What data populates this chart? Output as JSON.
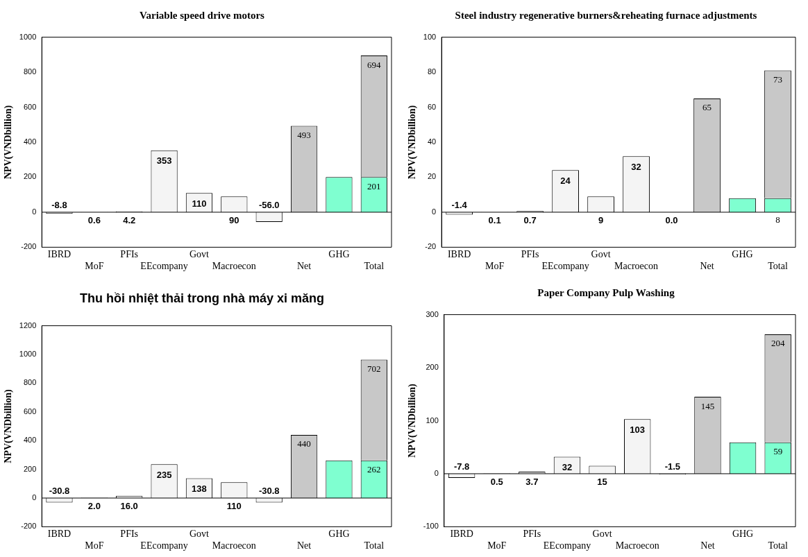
{
  "chart_data": [
    {
      "type": "bar",
      "title": "Variable speed drive motors",
      "ylabel": "NPV(VNDbillion)",
      "categories": [
        "IBRD",
        "MoF",
        "PFIs",
        "EEcompany",
        "Govt",
        "Macroecon",
        null,
        "Net",
        "GHG",
        "Total"
      ],
      "stacked": true,
      "ylim": [
        -200,
        1000
      ],
      "yticks": [
        -200,
        0,
        200,
        400,
        600,
        800,
        1000
      ],
      "grid": false,
      "ref_lines": [
        {
          "axis": "y",
          "value": 0,
          "color": "#000000"
        }
      ],
      "legend": false,
      "series": [
        {
          "color": "#f4f4f4",
          "values": [
            -8.8,
            0.6,
            4.2,
            353,
            110,
            90,
            -56.0,
            null,
            null,
            null
          ],
          "value_labels": [
            "-8.8",
            "0.6",
            "4.2",
            "353",
            "110",
            "90",
            "-56.0",
            null,
            null,
            null
          ]
        },
        {
          "color": "#7fffd0",
          "values": [
            null,
            null,
            null,
            null,
            null,
            null,
            null,
            null,
            201,
            201
          ],
          "value_labels": [
            null,
            null,
            null,
            null,
            null,
            null,
            null,
            null,
            null,
            "201"
          ]
        },
        {
          "color": "#c8c8c8",
          "values": [
            null,
            null,
            null,
            null,
            null,
            null,
            null,
            493,
            null,
            694
          ],
          "value_labels": [
            null,
            null,
            null,
            null,
            null,
            null,
            null,
            "493",
            null,
            "694"
          ]
        }
      ]
    },
    {
      "type": "bar",
      "title": "Steel industry regenerative burners&reheating furnace adjustments",
      "ylabel": "NPV(VNDbillion)",
      "categories": [
        "IBRD",
        "MoF",
        "PFIs",
        "EEcompany",
        "Govt",
        "Macroecon",
        null,
        "Net",
        "GHG",
        "Total"
      ],
      "stacked": true,
      "ylim": [
        -20,
        100
      ],
      "yticks": [
        -20,
        0,
        20,
        40,
        60,
        80,
        100
      ],
      "grid": false,
      "ref_lines": [
        {
          "axis": "y",
          "value": 0,
          "color": "#000000"
        }
      ],
      "legend": false,
      "series": [
        {
          "color": "#f4f4f4",
          "values": [
            -1.4,
            0.1,
            0.7,
            24,
            9,
            32,
            0.0,
            null,
            null,
            null
          ],
          "value_labels": [
            "-1.4",
            "0.1",
            "0.7",
            "24",
            "9",
            "32",
            "0.0",
            null,
            null,
            null
          ]
        },
        {
          "color": "#7fffd0",
          "values": [
            null,
            null,
            null,
            null,
            null,
            null,
            null,
            null,
            8,
            8
          ],
          "value_labels": [
            null,
            null,
            null,
            null,
            null,
            null,
            null,
            null,
            null,
            "8"
          ]
        },
        {
          "color": "#c8c8c8",
          "values": [
            null,
            null,
            null,
            null,
            null,
            null,
            null,
            65,
            null,
            73
          ],
          "value_labels": [
            null,
            null,
            null,
            null,
            null,
            null,
            null,
            "65",
            null,
            "73"
          ]
        }
      ]
    },
    {
      "type": "bar",
      "title": "Thu hồi nhiệt thải trong nhà máy xi măng",
      "ylabel": "NPV(VNDbillion)",
      "categories": [
        "IBRD",
        "MoF",
        "PFIs",
        "EEcompany",
        "Govt",
        "Macroecon",
        null,
        "Net",
        "GHG",
        "Total"
      ],
      "stacked": true,
      "ylim": [
        -200,
        1200
      ],
      "yticks": [
        -200,
        0,
        200,
        400,
        600,
        800,
        1000,
        1200
      ],
      "grid": false,
      "ref_lines": [
        {
          "axis": "y",
          "value": 0,
          "color": "#000000"
        }
      ],
      "legend": false,
      "series": [
        {
          "color": "#f4f4f4",
          "values": [
            -30.8,
            2.0,
            16.0,
            235,
            138,
            110,
            -30.8,
            null,
            null,
            null
          ],
          "value_labels": [
            "-30.8",
            "2.0",
            "16.0",
            "235",
            "138",
            "110",
            "-30.8",
            null,
            null,
            null
          ]
        },
        {
          "color": "#7fffd0",
          "values": [
            null,
            null,
            null,
            null,
            null,
            null,
            null,
            null,
            262,
            262
          ],
          "value_labels": [
            null,
            null,
            null,
            null,
            null,
            null,
            null,
            null,
            null,
            "262"
          ]
        },
        {
          "color": "#c8c8c8",
          "values": [
            null,
            null,
            null,
            null,
            null,
            null,
            null,
            440,
            null,
            702
          ],
          "value_labels": [
            null,
            null,
            null,
            null,
            null,
            null,
            null,
            "440",
            null,
            "702"
          ]
        }
      ]
    },
    {
      "type": "bar",
      "title": "Paper Company Pulp Washing",
      "ylabel": "NPV(VNDbillion)",
      "categories": [
        "IBRD",
        "MoF",
        "PFIs",
        "EEcompany",
        "Govt",
        "Macroecon",
        null,
        "Net",
        "GHG",
        "Total"
      ],
      "stacked": true,
      "ylim": [
        -100,
        300
      ],
      "yticks": [
        -100,
        0,
        100,
        200,
        300
      ],
      "grid": false,
      "ref_lines": [
        {
          "axis": "y",
          "value": 0,
          "color": "#000000"
        }
      ],
      "legend": false,
      "series": [
        {
          "color": "#f4f4f4",
          "values": [
            -7.8,
            0.5,
            3.7,
            32,
            15,
            103,
            -1.5,
            null,
            null,
            null
          ],
          "value_labels": [
            "-7.8",
            "0.5",
            "3.7",
            "32",
            "15",
            "103",
            "-1.5",
            null,
            null,
            null
          ]
        },
        {
          "color": "#7fffd0",
          "values": [
            null,
            null,
            null,
            null,
            null,
            null,
            null,
            null,
            59,
            59
          ],
          "value_labels": [
            null,
            null,
            null,
            null,
            null,
            null,
            null,
            null,
            null,
            "59"
          ]
        },
        {
          "color": "#c8c8c8",
          "values": [
            null,
            null,
            null,
            null,
            null,
            null,
            null,
            145,
            null,
            204
          ],
          "value_labels": [
            null,
            null,
            null,
            null,
            null,
            null,
            null,
            "145",
            null,
            "204"
          ]
        }
      ]
    }
  ]
}
